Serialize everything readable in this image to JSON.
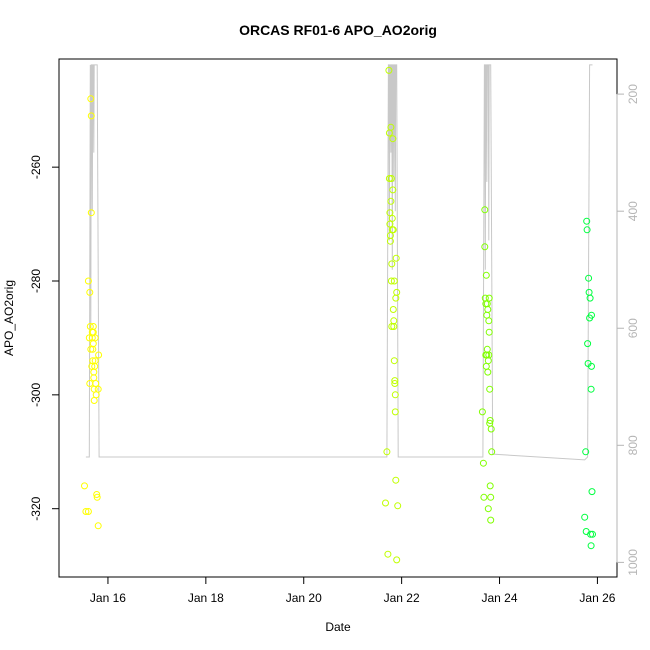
{
  "chart_data": {
    "type": "scatter",
    "title": "ORCAS RF01-6 APO_AO2orig",
    "xlabel": "Date",
    "ylabel": "APO_AO2orig",
    "x_unit": "day of January 2016",
    "xlim": [
      15.0,
      26.4
    ],
    "ylim": [
      -332.0,
      -241.0
    ],
    "x_ticks": [
      16,
      18,
      20,
      22,
      24,
      26
    ],
    "x_tick_labels": [
      "Jan 16",
      "Jan 18",
      "Jan 20",
      "Jan 22",
      "Jan 24",
      "Jan 26"
    ],
    "y_ticks": [
      -320,
      -300,
      -280,
      -260
    ],
    "y_tick_labels": [
      "-320",
      "-300",
      "-280",
      "-260"
    ],
    "right_axis": {
      "ylim": [
        1025,
        140
      ],
      "ticks": [
        200,
        400,
        600,
        800,
        1000
      ],
      "tick_labels": [
        "200",
        "400",
        "600",
        "800",
        "1000"
      ],
      "color": "#b5b5b5"
    },
    "grid": false,
    "legend": "none",
    "colors": {
      "flight1": "#ffff00",
      "flight2": "#c0ff00",
      "flight3": "#80ff00",
      "flight4": "#00ff40",
      "pressure_line": "#c8c8c8"
    },
    "series": [
      {
        "x": [
          15.52,
          15.55,
          15.6,
          15.6,
          15.62,
          15.63,
          15.63,
          15.64,
          15.65,
          15.65,
          15.66,
          15.66,
          15.67,
          15.68,
          15.68,
          15.69,
          15.69,
          15.7,
          15.7,
          15.7,
          15.71,
          15.71,
          15.72,
          15.72,
          15.73,
          15.74,
          15.74,
          15.75,
          15.76,
          15.77,
          15.78,
          15.8,
          15.8,
          15.81
        ],
        "y": [
          -316,
          -320.5,
          -320.5,
          -280,
          -290,
          -282,
          -298,
          -288,
          -292,
          -248,
          -251,
          -268,
          -295,
          -289,
          -290,
          -294,
          -292,
          -289,
          -291,
          -288,
          -297,
          -296,
          -301,
          -299,
          -295,
          -290,
          -294,
          -298,
          -300,
          -317.5,
          -318,
          -299,
          -323,
          -293
        ],
        "color": "#ffff00"
      },
      {
        "x": [
          21.67,
          21.7,
          21.72,
          21.74,
          21.75,
          21.75,
          21.76,
          21.76,
          21.77,
          21.77,
          21.78,
          21.78,
          21.79,
          21.79,
          21.8,
          21.8,
          21.81,
          21.81,
          21.82,
          21.82,
          21.83,
          21.83,
          21.84,
          21.84,
          21.85,
          21.85,
          21.86,
          21.86,
          21.87,
          21.87,
          21.88,
          21.88,
          21.89,
          21.9,
          21.9,
          21.92
        ],
        "y": [
          -319,
          -310,
          -328,
          -243,
          -254,
          -262,
          -268,
          -270,
          -273,
          -272,
          -266,
          -253,
          -280,
          -262,
          -277,
          -288,
          -269,
          -271,
          -264,
          -255,
          -271,
          -285,
          -287,
          -288,
          -280,
          -294,
          -297.5,
          -298,
          -300,
          -303,
          -315,
          -283,
          -276,
          -282,
          -329,
          -319.5
        ],
        "color": "#c0ff00"
      },
      {
        "x": [
          23.65,
          23.67,
          23.68,
          23.7,
          23.7,
          23.71,
          23.72,
          23.72,
          23.73,
          23.73,
          23.74,
          23.74,
          23.75,
          23.75,
          23.76,
          23.76,
          23.77,
          23.77,
          23.78,
          23.78,
          23.79,
          23.79,
          23.8,
          23.8,
          23.81,
          23.81,
          23.82,
          23.82,
          23.83,
          23.84
        ],
        "y": [
          -303,
          -312,
          -318,
          -267.5,
          -274,
          -283,
          -284,
          -293,
          -295,
          -279,
          -286,
          -293,
          -292,
          -284,
          -285,
          -296,
          -294,
          -320,
          -293,
          -287,
          -289,
          -283,
          -305,
          -299,
          -304.5,
          -316,
          -318,
          -322,
          -306,
          -310
        ],
        "color": "#80ff00"
      },
      {
        "x": [
          25.74,
          25.76,
          25.77,
          25.78,
          25.79,
          25.8,
          25.81,
          25.82,
          25.83,
          25.84,
          25.85,
          25.86,
          25.87,
          25.87,
          25.88,
          25.88,
          25.89,
          25.9
        ],
        "y": [
          -321.5,
          -310,
          -324,
          -269.5,
          -271,
          -291,
          -294.5,
          -279.5,
          -282,
          -286.5,
          -283,
          -324.5,
          -326.5,
          -299,
          -295,
          -286,
          -317,
          -324.5
        ],
        "color": "#00ff40"
      }
    ],
    "pressure_line": {
      "axis": "right",
      "color": "#c8c8c8",
      "x": [
        15.55,
        15.62,
        15.64,
        15.65,
        15.66,
        15.67,
        15.68,
        15.69,
        15.7,
        15.71,
        15.72,
        15.73,
        15.75,
        15.78,
        15.82,
        21.65,
        21.7,
        21.73,
        21.74,
        21.75,
        21.76,
        21.77,
        21.78,
        21.79,
        21.8,
        21.81,
        21.82,
        21.83,
        21.84,
        21.85,
        21.86,
        21.87,
        21.88,
        21.9,
        21.93,
        23.63,
        23.66,
        23.69,
        23.7,
        23.71,
        23.72,
        23.73,
        23.74,
        23.75,
        23.77,
        23.78,
        23.79,
        23.8,
        23.82,
        23.86,
        25.74,
        25.8,
        25.84,
        25.86,
        25.9
      ],
      "y": [
        820,
        820,
        150,
        600,
        150,
        150,
        400,
        150,
        150,
        300,
        150,
        150,
        150,
        150,
        820,
        820,
        820,
        150,
        150,
        450,
        150,
        150,
        300,
        150,
        150,
        500,
        150,
        150,
        350,
        150,
        150,
        400,
        150,
        150,
        820,
        820,
        820,
        150,
        150,
        500,
        150,
        150,
        350,
        150,
        150,
        450,
        150,
        150,
        150,
        815,
        825,
        820,
        150,
        150,
        150
      ]
    }
  }
}
